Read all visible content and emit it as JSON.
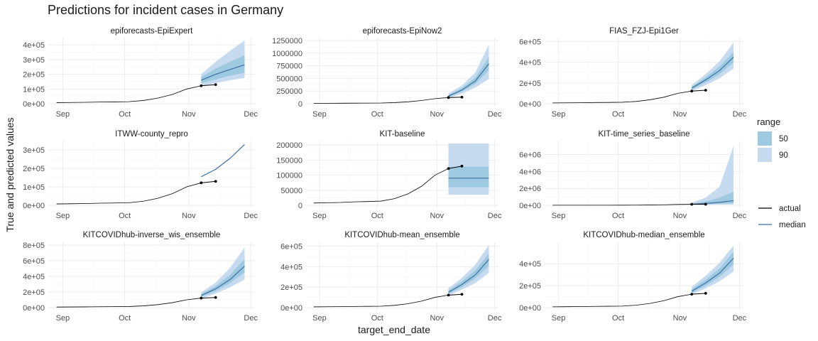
{
  "chart_data": {
    "type": "line",
    "title": "Predictions for incident cases in Germany",
    "xlabel": "target_end_date",
    "ylabel": "True and predicted values",
    "x_ticks": [
      {
        "label": "Sep",
        "date": "2020-09-01"
      },
      {
        "label": "Oct",
        "date": "2020-10-01"
      },
      {
        "label": "Nov",
        "date": "2020-11-01"
      },
      {
        "label": "Dec",
        "date": "2020-12-01"
      }
    ],
    "xlim": [
      "2020-08-25",
      "2020-12-03"
    ],
    "grid": true,
    "legend": {
      "position": "right",
      "range_title": "range",
      "range_items": [
        {
          "label": "50",
          "color": "#9ecae1"
        },
        {
          "label": "90",
          "color": "#c6dbef"
        }
      ],
      "line_items": [
        {
          "label": "actual",
          "color": "#000000"
        },
        {
          "label": "median",
          "color": "#3c6fa0"
        }
      ]
    },
    "actual_history": {
      "dates": [
        "2020-08-29",
        "2020-09-05",
        "2020-09-12",
        "2020-09-19",
        "2020-09-26",
        "2020-10-03",
        "2020-10-10",
        "2020-10-17",
        "2020-10-24",
        "2020-10-31",
        "2020-11-07"
      ],
      "values": [
        7500,
        8500,
        9500,
        11500,
        12500,
        14000,
        22000,
        38000,
        63000,
        100000,
        122000
      ]
    },
    "actual_observed": {
      "dates": [
        "2020-11-07",
        "2020-11-14"
      ],
      "values": [
        122000,
        130000
      ]
    },
    "panels": [
      {
        "name": "epiforecasts-EpiExpert",
        "ylim": [
          0,
          430000
        ],
        "yticks": [
          {
            "v": 0,
            "label": "0e+00"
          },
          {
            "v": 100000,
            "label": "1e+05"
          },
          {
            "v": 200000,
            "label": "2e+05"
          },
          {
            "v": 300000,
            "label": "3e+05"
          },
          {
            "v": 400000,
            "label": "4e+05"
          }
        ],
        "forecast": {
          "dates": [
            "2020-11-07",
            "2020-11-14",
            "2020-11-21",
            "2020-11-28"
          ],
          "median": [
            160000,
            200000,
            233000,
            265000
          ],
          "q50": [
            [
              140000,
              180000
            ],
            [
              165000,
              240000
            ],
            [
              190000,
              285000
            ],
            [
              210000,
              330000
            ]
          ],
          "q90": [
            [
              120000,
              200000
            ],
            [
              140000,
              285000
            ],
            [
              160000,
              360000
            ],
            [
              175000,
              430000
            ]
          ]
        }
      },
      {
        "name": "epiforecasts-EpiNow2",
        "ylim": [
          0,
          1250000
        ],
        "yticks": [
          {
            "v": 0,
            "label": "0"
          },
          {
            "v": 250000,
            "label": "250000"
          },
          {
            "v": 500000,
            "label": "500000"
          },
          {
            "v": 750000,
            "label": "750000"
          },
          {
            "v": 1000000,
            "label": "1000000"
          },
          {
            "v": 1250000,
            "label": "1250000"
          }
        ],
        "forecast": {
          "dates": [
            "2020-11-07",
            "2020-11-14",
            "2020-11-21",
            "2020-11-28"
          ],
          "median": [
            150000,
            270000,
            450000,
            790000
          ],
          "q50": [
            [
              130000,
              170000
            ],
            [
              240000,
              310000
            ],
            [
              390000,
              520000
            ],
            [
              660000,
              920000
            ]
          ],
          "q90": [
            [
              110000,
              200000
            ],
            [
              200000,
              360000
            ],
            [
              320000,
              620000
            ],
            [
              490000,
              1170000
            ]
          ]
        }
      },
      {
        "name": "FIAS_FZJ-Epi1Ger",
        "ylim": [
          0,
          610000
        ],
        "yticks": [
          {
            "v": 0,
            "label": "0e+00"
          },
          {
            "v": 200000,
            "label": "2e+05"
          },
          {
            "v": 400000,
            "label": "4e+05"
          },
          {
            "v": 600000,
            "label": "6e+05"
          }
        ],
        "forecast": {
          "dates": [
            "2020-11-07",
            "2020-11-14",
            "2020-11-21",
            "2020-11-28"
          ],
          "median": [
            150000,
            230000,
            320000,
            450000
          ],
          "q50": [
            [
              135000,
              165000
            ],
            [
              205000,
              255000
            ],
            [
              285000,
              360000
            ],
            [
              400000,
              500000
            ]
          ],
          "q90": [
            [
              120000,
              180000
            ],
            [
              180000,
              285000
            ],
            [
              245000,
              410000
            ],
            [
              340000,
              590000
            ]
          ]
        }
      },
      {
        "name": "ITWW-county_repro",
        "ylim": [
          0,
          335000
        ],
        "yticks": [
          {
            "v": 0,
            "label": "0e+00"
          },
          {
            "v": 100000,
            "label": "1e+05"
          },
          {
            "v": 200000,
            "label": "2e+05"
          },
          {
            "v": 300000,
            "label": "3e+05"
          }
        ],
        "forecast": {
          "dates": [
            "2020-11-07",
            "2020-11-14",
            "2020-11-21",
            "2020-11-28"
          ],
          "median": [
            155000,
            195000,
            255000,
            330000
          ],
          "q50": [],
          "q90": []
        }
      },
      {
        "name": "KIT-baseline",
        "ylim": [
          0,
          205000
        ],
        "yticks": [
          {
            "v": 0,
            "label": "0"
          },
          {
            "v": 50000,
            "label": "50000"
          },
          {
            "v": 100000,
            "label": "100000"
          },
          {
            "v": 150000,
            "label": "150000"
          },
          {
            "v": 200000,
            "label": "200000"
          }
        ],
        "forecast": {
          "dates": [
            "2020-11-07",
            "2020-11-14",
            "2020-11-21",
            "2020-11-28"
          ],
          "median": [
            90000,
            90000,
            90000,
            90000
          ],
          "q50": [
            [
              60000,
              128000
            ],
            [
              60000,
              128000
            ],
            [
              60000,
              128000
            ],
            [
              60000,
              128000
            ]
          ],
          "q90": [
            [
              35000,
              205000
            ],
            [
              35000,
              205000
            ],
            [
              35000,
              205000
            ],
            [
              35000,
              205000
            ]
          ]
        }
      },
      {
        "name": "KIT-time_series_baseline",
        "ylim": [
          0,
          7300000
        ],
        "yticks": [
          {
            "v": 0,
            "label": "0e+00"
          },
          {
            "v": 2000000,
            "label": "2e+06"
          },
          {
            "v": 4000000,
            "label": "4e+06"
          },
          {
            "v": 6000000,
            "label": "6e+06"
          }
        ],
        "forecast": {
          "dates": [
            "2020-11-07",
            "2020-11-14",
            "2020-11-21",
            "2020-11-28"
          ],
          "median": [
            130000,
            220000,
            350000,
            550000
          ],
          "q50": [
            [
              80000,
              200000
            ],
            [
              120000,
              450000
            ],
            [
              180000,
              900000
            ],
            [
              250000,
              1600000
            ]
          ],
          "q90": [
            [
              50000,
              300000
            ],
            [
              70000,
              900000
            ],
            [
              80000,
              2200000
            ],
            [
              90000,
              7000000
            ]
          ]
        }
      },
      {
        "name": "KITCOVIDhub-inverse_wis_ensemble",
        "ylim": [
          0,
          800000
        ],
        "yticks": [
          {
            "v": 0,
            "label": "0e+00"
          },
          {
            "v": 200000,
            "label": "2e+05"
          },
          {
            "v": 400000,
            "label": "4e+05"
          },
          {
            "v": 600000,
            "label": "6e+05"
          },
          {
            "v": 800000,
            "label": "8e+05"
          }
        ],
        "forecast": {
          "dates": [
            "2020-11-07",
            "2020-11-14",
            "2020-11-21",
            "2020-11-28"
          ],
          "median": [
            155000,
            240000,
            360000,
            530000
          ],
          "q50": [
            [
              138000,
              172000
            ],
            [
              210000,
              275000
            ],
            [
              315000,
              420000
            ],
            [
              450000,
              620000
            ]
          ],
          "q90": [
            [
              118000,
              195000
            ],
            [
              180000,
              320000
            ],
            [
              260000,
              510000
            ],
            [
              360000,
              770000
            ]
          ]
        }
      },
      {
        "name": "KITCOVIDhub-mean_ensemble",
        "ylim": [
          0,
          610000
        ],
        "yticks": [
          {
            "v": 0,
            "label": "0e+00"
          },
          {
            "v": 200000,
            "label": "2e+05"
          },
          {
            "v": 400000,
            "label": "4e+05"
          },
          {
            "v": 600000,
            "label": "6e+05"
          }
        ],
        "forecast": {
          "dates": [
            "2020-11-07",
            "2020-11-14",
            "2020-11-21",
            "2020-11-28"
          ],
          "median": [
            150000,
            225000,
            320000,
            470000
          ],
          "q50": [
            [
              135000,
              168000
            ],
            [
              200000,
              255000
            ],
            [
              285000,
              365000
            ],
            [
              410000,
              530000
            ]
          ],
          "q90": [
            [
              120000,
              190000
            ],
            [
              175000,
              290000
            ],
            [
              240000,
              420000
            ],
            [
              340000,
              610000
            ]
          ]
        }
      },
      {
        "name": "KITCOVIDhub-median_ensemble",
        "ylim": [
          0,
          570000
        ],
        "yticks": [
          {
            "v": 0,
            "label": "0e+00"
          },
          {
            "v": 200000,
            "label": "2e+05"
          },
          {
            "v": 400000,
            "label": "4e+05"
          }
        ],
        "forecast": {
          "dates": [
            "2020-11-07",
            "2020-11-14",
            "2020-11-21",
            "2020-11-28"
          ],
          "median": [
            150000,
            225000,
            315000,
            450000
          ],
          "q50": [
            [
              135000,
              168000
            ],
            [
              200000,
              255000
            ],
            [
              280000,
              360000
            ],
            [
              395000,
              510000
            ]
          ],
          "q90": [
            [
              120000,
              190000
            ],
            [
              175000,
              290000
            ],
            [
              240000,
              410000
            ],
            [
              330000,
              565000
            ]
          ]
        }
      }
    ]
  }
}
